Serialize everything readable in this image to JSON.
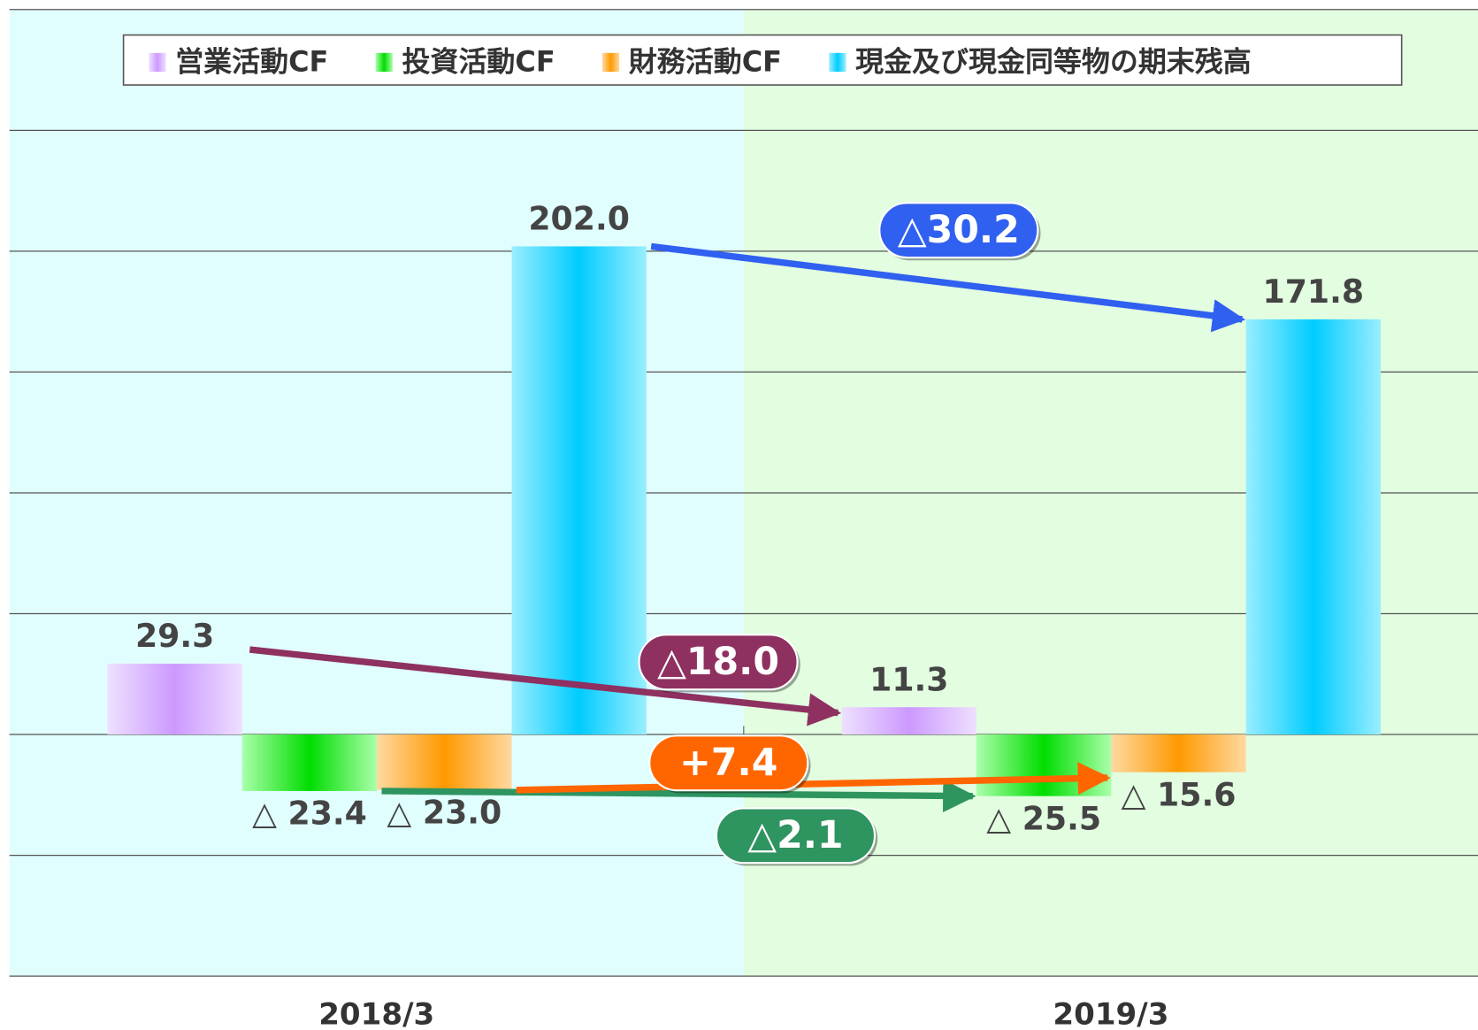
{
  "chart_data": {
    "type": "bar",
    "categories": [
      "2018/3",
      "2019/3"
    ],
    "category_backgrounds": [
      "#e0fefe",
      "#e2fde0"
    ],
    "series": [
      {
        "name": "営業活動CF",
        "color": "#cc99ff",
        "edge_color": "#eee0ff",
        "values": [
          29.3,
          11.3
        ],
        "value_labels": [
          "29.3",
          "11.3"
        ],
        "change_label": "△18.0",
        "change_color": "#8e3060"
      },
      {
        "name": "投資活動CF",
        "color": "#00dd00",
        "edge_color": "#aaffaa",
        "values": [
          -23.4,
          -25.5
        ],
        "value_labels": [
          "△ 23.4",
          "△ 25.5"
        ],
        "change_label": "△2.1",
        "change_color": "#2e9460"
      },
      {
        "name": "財務活動CF",
        "color": "#ff9900",
        "edge_color": "#ffd9a0",
        "values": [
          -23.0,
          -15.6
        ],
        "value_labels": [
          "△ 23.0",
          "△ 15.6"
        ],
        "change_label": "+7.4",
        "change_color": "#ff6600"
      },
      {
        "name": "現金及び現金同等物の期末残高",
        "color": "#00ccff",
        "edge_color": "#99eeff",
        "values": [
          202.0,
          171.8
        ],
        "value_labels": [
          "202.0",
          "171.8"
        ],
        "change_label": "△30.2",
        "change_color": "#3060f0"
      }
    ],
    "ylim": [
      -100,
      300
    ],
    "yticks": [
      -100,
      -50,
      0,
      50,
      100,
      150,
      200,
      250,
      300
    ],
    "grid": true,
    "legend": "top"
  }
}
